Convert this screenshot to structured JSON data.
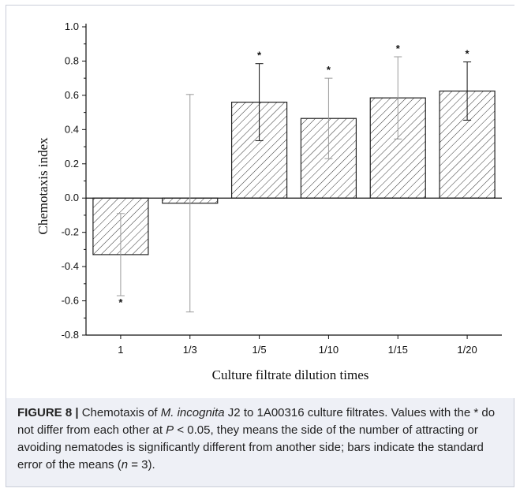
{
  "chart_data": {
    "type": "bar",
    "categories": [
      "1",
      "1/3",
      "1/5",
      "1/10",
      "1/15",
      "1/20"
    ],
    "values": [
      -0.33,
      -0.03,
      0.56,
      0.465,
      0.585,
      0.625
    ],
    "errors": [
      0.24,
      0.635,
      0.225,
      0.235,
      0.24,
      0.17
    ],
    "significance": [
      "*",
      "",
      "*",
      "*",
      "*",
      "*"
    ],
    "xlabel": "Culture filtrate dilution times",
    "ylabel": "Chemotaxis index",
    "ylim": [
      -0.8,
      1.0
    ],
    "yticks": [
      -0.8,
      -0.6,
      -0.4,
      -0.2,
      0.0,
      0.2,
      0.4,
      0.6,
      0.8,
      1.0
    ],
    "ytick_labels": [
      "-0.8",
      "-0.6",
      "-0.4",
      "-0.2",
      "0.0",
      "0.2",
      "0.4",
      "0.6",
      "0.8",
      "1.0"
    ],
    "bar_fill": "hatched",
    "grid": false
  },
  "caption": {
    "label": "FIGURE 8 |",
    "text_before_species": "Chemotaxis of ",
    "species": "M. incognita",
    "text_after_species": " J2 to 1A00316 culture filtrates. Values with the * do not differ from each other at ",
    "p_symbol": "P",
    "p_condition": " < 0.05, they means the side of the number of attracting or avoiding nematodes is significantly different from another side; bars indicate the standard error of the means (",
    "n_symbol": "n",
    "n_value": " = 3)."
  },
  "colors": {
    "background": "#eef0f6",
    "plot_bg": "#ffffff",
    "bar_stroke": "#222222",
    "hatch": "#333333"
  }
}
